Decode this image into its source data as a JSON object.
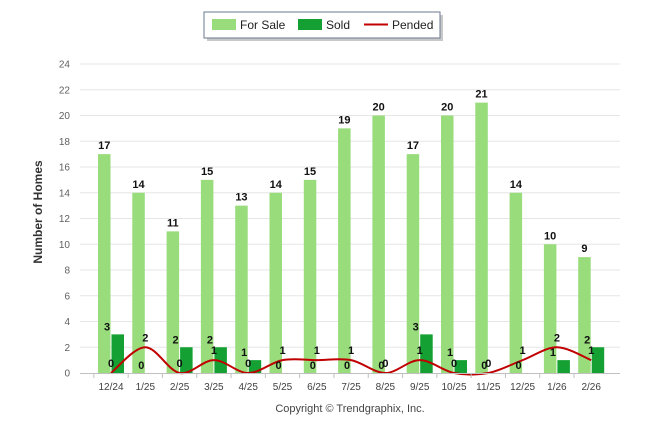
{
  "chart_data": {
    "type": "bar",
    "ylabel": "Number of Homes",
    "ylim": [
      0,
      24
    ],
    "yticks": [
      0,
      2,
      4,
      6,
      8,
      10,
      12,
      14,
      16,
      18,
      20,
      22,
      24
    ],
    "categories": [
      "12/24",
      "1/25",
      "2/25",
      "3/25",
      "4/25",
      "5/25",
      "6/25",
      "7/25",
      "8/25",
      "9/25",
      "10/25",
      "11/25",
      "12/25",
      "1/26",
      "2/26"
    ],
    "series": [
      {
        "name": "For Sale",
        "type": "bar",
        "color": "#98dc7c",
        "values": [
          17,
          14,
          11,
          15,
          13,
          14,
          15,
          19,
          20,
          17,
          20,
          21,
          14,
          10,
          9
        ]
      },
      {
        "name": "Sold",
        "type": "bar",
        "color": "#14a032",
        "values": [
          3,
          0,
          2,
          2,
          1,
          0,
          0,
          0,
          0,
          3,
          1,
          0,
          0,
          1,
          2
        ]
      },
      {
        "name": "Pended",
        "type": "line",
        "color": "#c00000",
        "values": [
          0,
          2,
          0,
          1,
          0,
          1,
          1,
          1,
          0,
          1,
          0,
          0,
          1,
          2,
          1
        ]
      }
    ],
    "legend": "top-center",
    "grid": true
  },
  "credit": "Copyright © Trendgraphix, Inc."
}
